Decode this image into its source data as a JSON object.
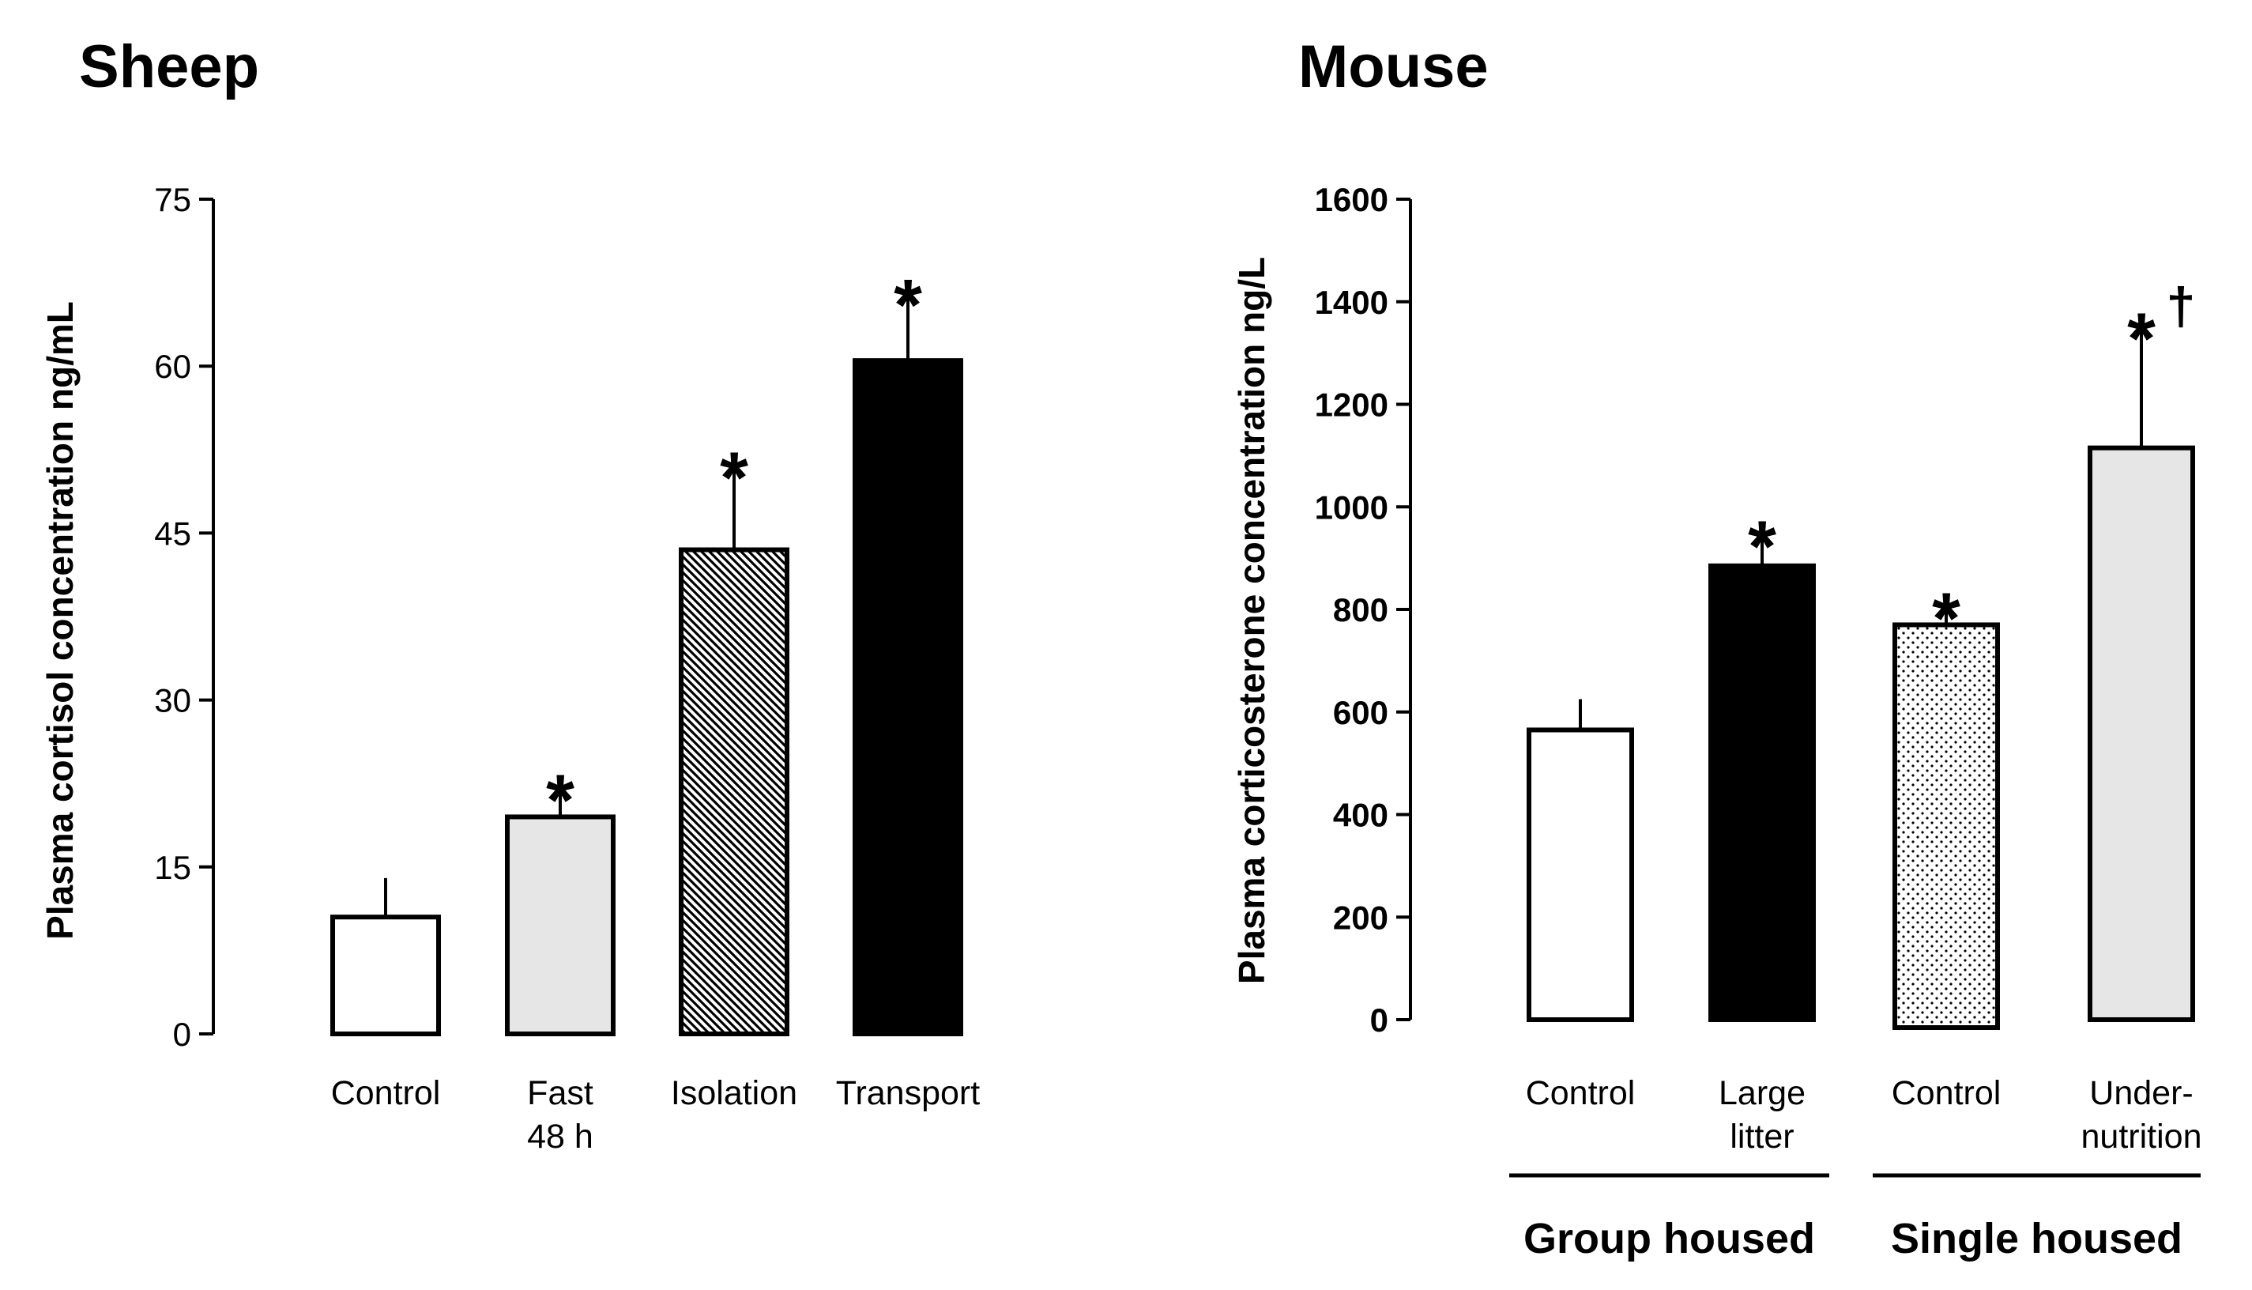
{
  "chart_data": [
    {
      "type": "bar",
      "title": "Sheep",
      "ylabel": "Plasma cortisol concentration ng/mL",
      "xlabel": "",
      "ylim": [
        0,
        75
      ],
      "yticks": [
        0,
        15,
        30,
        45,
        60,
        75
      ],
      "grid": false,
      "categories": [
        {
          "line1": "Control",
          "line2": ""
        },
        {
          "line1": "Fast",
          "line2": "48 h"
        },
        {
          "line1": "Isolation",
          "line2": ""
        },
        {
          "line1": "Transport",
          "line2": ""
        }
      ],
      "values": [
        10.5,
        19.5,
        43.5,
        60.5
      ],
      "errors": [
        3.5,
        2.5,
        7.5,
        6.0
      ],
      "fills": [
        "white",
        "lightgray",
        "hatch",
        "black"
      ],
      "annotations": [
        "",
        "*",
        "*",
        "*"
      ],
      "groups": []
    },
    {
      "type": "bar",
      "title": "Mouse",
      "ylabel": "Plasma corticosterone concentration ng/L",
      "xlabel": "",
      "ylim": [
        0,
        1600
      ],
      "yticks": [
        0,
        200,
        400,
        600,
        800,
        1000,
        1200,
        1400,
        1600
      ],
      "grid": false,
      "categories": [
        {
          "line1": "Control",
          "line2": ""
        },
        {
          "line1": "Large",
          "line2": "litter"
        },
        {
          "line1": "Control",
          "line2": ""
        },
        {
          "line1": "Under-",
          "line2": "nutrition"
        }
      ],
      "values": [
        565,
        885,
        770,
        1115
      ],
      "errors": [
        60,
        60,
        35,
        235
      ],
      "fills": [
        "white",
        "black",
        "dots",
        "lightgray"
      ],
      "annotations": [
        "",
        "*",
        "*",
        "*"
      ],
      "annotations2": [
        "",
        "",
        "",
        "†"
      ],
      "groups": [
        {
          "label": "Group housed",
          "members": [
            0,
            1
          ]
        },
        {
          "label": "Single  housed",
          "members": [
            2,
            3
          ]
        }
      ]
    }
  ],
  "colors": {
    "light_gray": "#e6e6e6",
    "black": "#000000",
    "white": "#ffffff"
  }
}
